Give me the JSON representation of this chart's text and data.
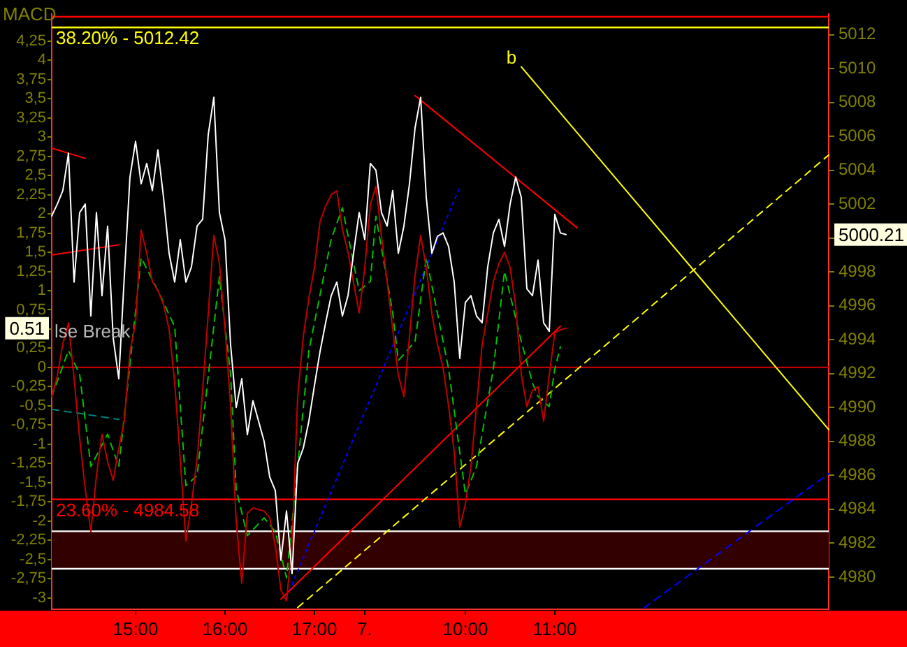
{
  "chart_data": {
    "type": "line",
    "ylabel": "MACD",
    "categories": [
      null,
      null,
      null,
      null,
      null,
      null,
      null,
      null,
      null,
      null,
      null,
      null,
      null,
      null,
      null,
      "15:00",
      null,
      null,
      null,
      null,
      null,
      null,
      null,
      null,
      null,
      null,
      null,
      null,
      null,
      null,
      null,
      "16:00",
      null,
      null,
      null,
      null,
      null,
      null,
      null,
      null,
      null,
      null,
      null,
      null,
      null,
      null,
      null,
      "17:00",
      null,
      null,
      null,
      null,
      null,
      null,
      null,
      null,
      "7.",
      null,
      null,
      null,
      null,
      null,
      null,
      null,
      null,
      null,
      null,
      null,
      null,
      null,
      null,
      null,
      null,
      null,
      "10:00",
      null,
      null,
      null,
      null,
      null,
      null,
      null,
      null,
      null,
      null,
      null,
      null,
      null,
      null,
      null,
      "11:00",
      null,
      null,
      null,
      null,
      null,
      null,
      null,
      null,
      null,
      null,
      null,
      null,
      null,
      null,
      null,
      null,
      null,
      null,
      null,
      null,
      null,
      null,
      null,
      null,
      null,
      null,
      null,
      null,
      null,
      null,
      null,
      null,
      null,
      null,
      null,
      null,
      null,
      null,
      null,
      null,
      null,
      null,
      null,
      null,
      null,
      null,
      null,
      null,
      null
    ],
    "ylim": [
      -3.15,
      4.6
    ],
    "y2lim": [
      4978.1,
      5013.2
    ],
    "yticks": [
      -3,
      {
        "value": -2.75,
        "label": "-2,75"
      },
      {
        "value": -2.5,
        "label": "-2,5"
      },
      {
        "value": -2.25,
        "label": "-2,25"
      },
      -2,
      {
        "value": -1.75,
        "label": "-1,75"
      },
      {
        "value": -1.5,
        "label": "-1,5"
      },
      {
        "value": -1.25,
        "label": "-1,25"
      },
      -1,
      {
        "value": -0.75,
        "label": "-0,75"
      },
      {
        "value": -0.5,
        "label": "-0,5"
      },
      {
        "value": -0.25,
        "label": "-0,25"
      },
      0,
      {
        "value": 0.25,
        "label": "0,25"
      },
      {
        "value": 0.5,
        "label": null
      },
      {
        "value": 0.75,
        "label": "0,75"
      },
      1,
      {
        "value": 1.25,
        "label": "1,25"
      },
      {
        "value": 1.5,
        "label": "1,5"
      },
      {
        "value": 1.75,
        "label": "1,75"
      },
      2,
      {
        "value": 2.25,
        "label": "2,25"
      },
      {
        "value": 2.5,
        "label": "2,5"
      },
      {
        "value": 2.75,
        "label": "2,75"
      },
      3,
      {
        "value": 3.25,
        "label": "3,25"
      },
      {
        "value": 3.5,
        "label": "3,5"
      },
      {
        "value": 3.75,
        "label": "3,75"
      },
      4,
      {
        "value": 4.25,
        "label": "4,25"
      }
    ],
    "y2ticks": [
      4980,
      4982,
      4984,
      4986,
      4988,
      4990,
      4992,
      4994,
      4996,
      4998,
      {
        "value": 5000,
        "label": null
      },
      5002,
      5004,
      5006,
      5008,
      5010,
      5012
    ],
    "series": [
      {
        "axis": "y2",
        "color": "#ffffff",
        "values": [
          5001.3,
          5002.0,
          5002.8,
          5005.0,
          4997.4,
          5001.5,
          5002.0,
          4995.4,
          5001.5,
          4996.6,
          5000.7,
          4994.1,
          4991.7,
          4997.8,
          5003.6,
          5005.7,
          5003.2,
          5004.4,
          5002.8,
          5005.2,
          5002.4,
          4999.1,
          4997.4,
          4999.9,
          4997.4,
          4998.3,
          5000.7,
          5001.1,
          5006.1,
          5008.3,
          5001.5,
          4999.9,
          4993.7,
          4990.0,
          4991.7,
          4988.4,
          4990.4,
          4989.2,
          4988.0,
          4985.9,
          4985.1,
          4981.0,
          4983.9,
          4980.2,
          4986.7,
          4987.6,
          4989.2,
          4991.3,
          4993.3,
          4995.0,
          4996.6,
          4997.4,
          4995.4,
          4996.6,
          4999.1,
          5001.5,
          4999.9,
          5004.4,
          5004.0,
          5001.5,
          5000.7,
          5002.8,
          4999.1,
          5000.7,
          5003.2,
          5006.5,
          5008.3,
          5002.4,
          4999.1,
          5000.1,
          5000.3,
          4999.5,
          4997.4,
          4992.9,
          4996.2,
          4996.6,
          4995.4,
          4995.0,
          4998.3,
          5000.3,
          5001.1,
          4999.5,
          5002.0,
          5003.6,
          5002.4,
          4997.0,
          4996.6,
          4998.7,
          4995.0,
          4994.5,
          5001.4,
          5000.3,
          5000.2,
          null,
          null,
          null,
          null,
          null,
          null,
          null,
          null,
          null,
          null,
          null,
          null,
          null,
          null,
          null,
          null,
          null,
          null,
          null,
          null,
          null,
          null,
          null,
          null,
          null,
          null,
          null,
          null,
          null,
          null,
          null,
          null,
          null,
          null,
          null,
          null,
          null,
          null,
          null,
          null,
          null,
          null,
          null,
          null,
          null,
          null,
          null
        ]
      },
      {
        "color": "#c00000",
        "values": [
          -0.38,
          -0.11,
          0.31,
          0.58,
          -0.14,
          -0.92,
          -1.59,
          -2.14,
          -1.41,
          -0.87,
          -1.23,
          -1.47,
          -1.05,
          -0.69,
          0.2,
          0.58,
          1.79,
          1.49,
          1.12,
          1.0,
          0.82,
          0.5,
          -0.2,
          -1.2,
          -2.26,
          -1.78,
          -1.2,
          -0.3,
          0.7,
          1.72,
          1.36,
          0.5,
          -0.5,
          -2.0,
          -2.81,
          -1.9,
          -1.83,
          -1.85,
          -1.87,
          -1.96,
          -2.32,
          -2.9,
          -3.04,
          -2.3,
          -0.38,
          0.4,
          0.9,
          1.3,
          1.9,
          2.1,
          2.25,
          2.3,
          1.8,
          1.5,
          1.1,
          0.71,
          1.3,
          2.12,
          2.36,
          1.7,
          1.12,
          0.5,
          -0.1,
          -0.38,
          0.4,
          1.2,
          1.72,
          1.3,
          0.7,
          0.3,
          0.0,
          -0.5,
          -1.1,
          -2.08,
          -1.78,
          -1.29,
          -0.5,
          0.3,
          0.7,
          1.12,
          1.35,
          1.5,
          1.3,
          0.8,
          -0.09,
          -0.51,
          -0.3,
          -0.25,
          -0.7,
          -0.1,
          0.45,
          0.49,
          0.51,
          null,
          null,
          null,
          null,
          null,
          null,
          null,
          null,
          null,
          null,
          null,
          null,
          null,
          null,
          null,
          null,
          null,
          null,
          null,
          null,
          null,
          null,
          null,
          null,
          null,
          null,
          null,
          null,
          null,
          null,
          null,
          null,
          null,
          null,
          null,
          null,
          null,
          null,
          null,
          null,
          null,
          null,
          null,
          null,
          null,
          null,
          null
        ]
      },
      {
        "color": "#00c000",
        "line_style": "dashed",
        "values": [
          -0.38,
          null,
          null,
          0.22,
          null,
          -0.09,
          null,
          -1.29,
          null,
          null,
          -0.87,
          null,
          -1.29,
          null,
          0.04,
          null,
          1.43,
          null,
          null,
          1.0,
          null,
          null,
          0.53,
          null,
          -1.54,
          null,
          -1.41,
          null,
          null,
          0.53,
          1.18,
          null,
          -0.09,
          -1.59,
          null,
          -2.19,
          null,
          null,
          -1.96,
          null,
          -2.14,
          null,
          -2.74,
          null,
          -1.29,
          null,
          0.22,
          null,
          null,
          null,
          1.67,
          null,
          2.08,
          null,
          null,
          1.0,
          null,
          1.12,
          1.97,
          null,
          null,
          0.71,
          0.09,
          null,
          null,
          0.34,
          null,
          1.43,
          null,
          null,
          null,
          -0.02,
          null,
          null,
          -1.65,
          null,
          -1.29,
          null,
          null,
          -0.02,
          null,
          1.25,
          null,
          null,
          0.34,
          null,
          -0.2,
          -0.38,
          null,
          -0.51,
          -0.02,
          0.27,
          null,
          null,
          null,
          null,
          null,
          null,
          null,
          null,
          null,
          null,
          null,
          null,
          null,
          null,
          null,
          null,
          null,
          null,
          null,
          null,
          null,
          null,
          null,
          null,
          null,
          null,
          null,
          null,
          null,
          null,
          null,
          null,
          null,
          null,
          null,
          null,
          null,
          null,
          null,
          null,
          null,
          null,
          null,
          null,
          null,
          null,
          null,
          null
        ]
      },
      {
        "axis": "y2",
        "color": "#ff0000",
        "values": [
          null,
          null,
          null,
          null,
          null,
          null,
          null,
          null,
          null,
          null,
          null,
          null,
          null,
          null,
          null,
          null,
          null,
          null,
          null,
          null,
          null,
          null,
          null,
          null,
          null,
          null,
          null,
          null,
          null,
          null,
          null,
          null,
          null,
          null,
          null,
          null,
          null,
          null,
          null,
          null,
          null,
          null,
          null,
          null,
          null,
          null,
          null,
          null,
          null,
          null,
          null,
          null,
          null,
          null,
          null,
          null,
          null,
          null,
          null,
          null,
          null,
          null,
          null,
          null,
          null,
          5008.4,
          null,
          null,
          null,
          null,
          null,
          null,
          null,
          null,
          null,
          null,
          null,
          null,
          null,
          null,
          null,
          null,
          null,
          null,
          null,
          null,
          null,
          null,
          null,
          null,
          null,
          null,
          null,
          null,
          5000.6,
          null,
          null,
          null,
          null,
          null,
          null,
          null,
          null,
          null,
          null,
          null,
          null,
          null,
          null,
          null,
          null,
          null,
          null,
          null,
          null,
          null,
          null,
          null,
          null,
          null,
          null,
          null,
          null,
          null,
          null,
          null,
          null,
          null,
          null,
          null,
          null,
          null,
          null,
          null,
          null,
          null,
          null,
          null,
          null,
          null
        ]
      },
      {
        "axis": "y2",
        "color": "#ff0000",
        "values": [
          null,
          null,
          null,
          null,
          null,
          null,
          null,
          null,
          null,
          null,
          null,
          null,
          null,
          null,
          null,
          null,
          null,
          null,
          null,
          null,
          null,
          null,
          null,
          null,
          null,
          null,
          null,
          null,
          null,
          null,
          null,
          null,
          null,
          null,
          null,
          null,
          null,
          null,
          null,
          null,
          null,
          4978.7,
          null,
          null,
          null,
          null,
          null,
          null,
          null,
          null,
          null,
          null,
          null,
          null,
          null,
          null,
          null,
          null,
          null,
          null,
          null,
          null,
          null,
          null,
          null,
          null,
          null,
          null,
          null,
          null,
          null,
          null,
          null,
          null,
          null,
          null,
          null,
          null,
          null,
          null,
          null,
          null,
          null,
          null,
          null,
          null,
          null,
          null,
          null,
          null,
          null,
          4994.8,
          null,
          null,
          null,
          null,
          null,
          null,
          null,
          null,
          null,
          null,
          null,
          null,
          null,
          null,
          null,
          null,
          null,
          null,
          null,
          null,
          null,
          null,
          null,
          null,
          null,
          null,
          null,
          null,
          null,
          null,
          null,
          null,
          null,
          null,
          null,
          null,
          null,
          null,
          null,
          null,
          null,
          null,
          null,
          null,
          null,
          null,
          null,
          null
        ]
      },
      {
        "axis": "y2",
        "color": "#0000ff",
        "line_style": "dotted",
        "values": [
          null,
          null,
          null,
          null,
          null,
          null,
          null,
          null,
          null,
          null,
          null,
          null,
          null,
          null,
          null,
          null,
          null,
          null,
          null,
          null,
          null,
          null,
          null,
          null,
          null,
          null,
          null,
          null,
          null,
          null,
          null,
          null,
          null,
          null,
          null,
          null,
          null,
          null,
          null,
          null,
          null,
          null,
          4978.8,
          null,
          null,
          null,
          null,
          null,
          null,
          null,
          null,
          null,
          null,
          null,
          null,
          null,
          null,
          null,
          null,
          null,
          null,
          null,
          null,
          null,
          null,
          null,
          null,
          null,
          null,
          null,
          null,
          null,
          null,
          5003.0,
          null,
          null,
          null,
          null,
          null,
          null,
          null,
          null,
          null,
          null,
          null,
          null,
          null,
          null,
          null,
          null,
          null,
          null,
          null,
          null,
          null,
          null,
          null,
          null,
          null,
          null,
          null,
          null,
          null,
          null,
          null,
          null,
          null,
          null,
          null,
          null,
          null,
          null,
          null,
          null,
          null,
          null,
          null,
          null,
          null,
          null,
          null,
          null,
          null,
          null,
          null,
          null,
          null,
          null,
          null,
          null,
          null,
          null,
          null,
          null,
          null,
          null,
          null,
          null,
          null,
          null
        ]
      },
      {
        "axis": "y2",
        "color": "#0000ff",
        "line_style": "dashed",
        "values": [
          null,
          null,
          null,
          null,
          null,
          null,
          null,
          null,
          null,
          null,
          null,
          null,
          null,
          null,
          null,
          null,
          null,
          null,
          null,
          null,
          null,
          null,
          null,
          null,
          null,
          null,
          null,
          null,
          null,
          null,
          null,
          null,
          null,
          null,
          null,
          null,
          null,
          null,
          null,
          null,
          null,
          null,
          null,
          null,
          null,
          null,
          null,
          null,
          null,
          null,
          null,
          null,
          null,
          null,
          null,
          null,
          null,
          null,
          null,
          null,
          null,
          null,
          null,
          null,
          null,
          null,
          null,
          null,
          null,
          null,
          null,
          null,
          null,
          null,
          null,
          null,
          null,
          null,
          null,
          null,
          null,
          null,
          null,
          null,
          null,
          null,
          null,
          null,
          null,
          null,
          null,
          null,
          null,
          null,
          null,
          null,
          null,
          null,
          null,
          null,
          null,
          null,
          null,
          null,
          null,
          null,
          4978.2,
          null,
          null,
          null,
          null,
          null,
          null,
          null,
          null,
          null,
          null,
          null,
          null,
          null,
          null,
          null,
          null,
          null,
          null,
          null,
          null,
          null,
          null,
          null,
          null,
          null,
          null,
          null,
          null,
          null,
          null,
          null,
          null,
          4986.1
        ]
      },
      {
        "axis": "y2",
        "color": "#ffff00",
        "values": [
          null,
          null,
          null,
          null,
          null,
          null,
          null,
          null,
          null,
          null,
          null,
          null,
          null,
          null,
          null,
          null,
          null,
          null,
          null,
          null,
          null,
          null,
          null,
          null,
          null,
          null,
          null,
          null,
          null,
          null,
          null,
          null,
          null,
          null,
          null,
          null,
          null,
          null,
          null,
          null,
          null,
          null,
          null,
          null,
          null,
          null,
          null,
          null,
          null,
          null,
          null,
          null,
          null,
          null,
          null,
          null,
          null,
          null,
          null,
          null,
          null,
          null,
          null,
          null,
          null,
          null,
          null,
          null,
          null,
          null,
          null,
          null,
          null,
          null,
          null,
          null,
          null,
          null,
          null,
          null,
          null,
          null,
          null,
          null,
          5010.1,
          null,
          null,
          null,
          null,
          null,
          null,
          null,
          null,
          null,
          null,
          null,
          null,
          null,
          null,
          null,
          null,
          null,
          null,
          null,
          null,
          null,
          null,
          null,
          null,
          null,
          null,
          null,
          null,
          null,
          null,
          null,
          null,
          null,
          null,
          null,
          null,
          null,
          null,
          null,
          null,
          null,
          null,
          null,
          null,
          null,
          null,
          null,
          null,
          null,
          null,
          null,
          null,
          null,
          null,
          4988.7
        ]
      },
      {
        "axis": "y2",
        "color": "#ffff00",
        "line_style": "dashed",
        "values": [
          null,
          null,
          null,
          null,
          null,
          null,
          null,
          null,
          null,
          null,
          null,
          null,
          null,
          null,
          null,
          null,
          null,
          null,
          null,
          null,
          null,
          null,
          null,
          null,
          null,
          null,
          null,
          null,
          null,
          null,
          null,
          null,
          null,
          null,
          null,
          null,
          null,
          null,
          null,
          null,
          null,
          null,
          null,
          null,
          4978.2,
          null,
          null,
          null,
          null,
          null,
          null,
          null,
          null,
          null,
          null,
          null,
          null,
          null,
          null,
          null,
          null,
          null,
          null,
          null,
          null,
          null,
          null,
          null,
          null,
          null,
          null,
          null,
          null,
          null,
          null,
          null,
          null,
          null,
          null,
          null,
          null,
          null,
          null,
          null,
          null,
          null,
          null,
          null,
          null,
          null,
          null,
          null,
          null,
          null,
          null,
          null,
          null,
          null,
          null,
          null,
          null,
          null,
          null,
          null,
          null,
          null,
          null,
          null,
          null,
          null,
          null,
          null,
          null,
          null,
          null,
          null,
          null,
          null,
          null,
          null,
          null,
          null,
          null,
          null,
          null,
          null,
          null,
          null,
          null,
          null,
          null,
          null,
          null,
          null,
          null,
          null,
          null,
          null,
          null,
          5004.9
        ]
      },
      {
        "axis": "y2",
        "color": "#ff0000",
        "values": [
          5005.3,
          null,
          null,
          null,
          null,
          null,
          5004.7,
          null,
          null,
          null,
          null,
          null,
          null,
          null,
          null,
          null,
          null,
          null,
          null,
          null,
          null,
          null,
          null,
          null,
          null,
          null,
          null,
          null,
          null,
          null,
          null,
          null,
          null,
          null,
          null,
          null,
          null,
          null,
          null,
          null,
          null,
          null,
          null,
          null,
          null,
          null,
          null,
          null,
          null,
          null,
          null,
          null,
          null,
          null,
          null,
          null,
          null,
          null,
          null,
          null,
          null,
          null,
          null,
          null,
          null,
          null,
          null,
          null,
          null,
          null,
          null,
          null,
          null,
          null,
          null,
          null,
          null,
          null,
          null,
          null,
          null,
          null,
          null,
          null,
          null,
          null,
          null,
          null,
          null,
          null,
          null,
          null,
          null,
          null,
          null,
          null,
          null,
          null,
          null,
          null,
          null,
          null,
          null,
          null,
          null,
          null,
          null,
          null,
          null,
          null,
          null,
          null,
          null,
          null,
          null,
          null,
          null,
          null,
          null,
          null,
          null,
          null,
          null,
          null,
          null,
          null,
          null,
          null,
          null,
          null,
          null,
          null,
          null,
          null,
          null,
          null,
          null,
          null,
          null,
          null
        ]
      },
      {
        "axis": "y2",
        "color": "#ff0000",
        "values": [
          4999.0,
          null,
          null,
          null,
          null,
          null,
          null,
          null,
          null,
          null,
          null,
          null,
          4999.6,
          null,
          null,
          null,
          null,
          null,
          null,
          null,
          null,
          null,
          null,
          null,
          null,
          null,
          null,
          null,
          null,
          null,
          null,
          null,
          null,
          null,
          null,
          null,
          null,
          null,
          null,
          null,
          null,
          null,
          null,
          null,
          null,
          null,
          null,
          null,
          null,
          null,
          null,
          null,
          null,
          null,
          null,
          null,
          null,
          null,
          null,
          null,
          null,
          null,
          null,
          null,
          null,
          null,
          null,
          null,
          null,
          null,
          null,
          null,
          null,
          null,
          null,
          null,
          null,
          null,
          null,
          null,
          null,
          null,
          null,
          null,
          null,
          null,
          null,
          null,
          null,
          null,
          null,
          null,
          null,
          null,
          null,
          null,
          null,
          null,
          null,
          null,
          null,
          null,
          null,
          null,
          null,
          null,
          null,
          null,
          null,
          null,
          null,
          null,
          null,
          null,
          null,
          null,
          null,
          null,
          null,
          null,
          null,
          null,
          null,
          null,
          null,
          null,
          null,
          null,
          null,
          null,
          null,
          null,
          null,
          null,
          null,
          null,
          null,
          null,
          null,
          null
        ]
      },
      {
        "axis": "y2",
        "color": "#008080",
        "line_style": "dashed",
        "values": [
          4989.9,
          null,
          null,
          null,
          null,
          null,
          null,
          null,
          null,
          null,
          null,
          null,
          4989.3,
          null,
          null,
          null,
          null,
          null,
          null,
          null,
          null,
          null,
          null,
          null,
          null,
          null,
          null,
          null,
          null,
          null,
          null,
          null,
          null,
          null,
          null,
          null,
          null,
          null,
          null,
          null,
          null,
          null,
          null,
          null,
          null,
          null,
          null,
          null,
          null,
          null,
          null,
          null,
          null,
          null,
          null,
          null,
          null,
          null,
          null,
          null,
          null,
          null,
          null,
          null,
          null,
          null,
          null,
          null,
          null,
          null,
          null,
          null,
          null,
          null,
          null,
          null,
          null,
          null,
          null,
          null,
          null,
          null,
          null,
          null,
          null,
          null,
          null,
          null,
          null,
          null,
          null,
          null,
          null,
          null,
          null,
          null,
          null,
          null,
          null,
          null,
          null,
          null,
          null,
          null,
          null,
          null,
          null,
          null,
          null,
          null,
          null,
          null,
          null,
          null,
          null,
          null,
          null,
          null,
          null,
          null,
          null,
          null,
          null,
          null,
          null,
          null,
          null,
          null,
          null,
          null,
          null,
          null,
          null,
          null,
          null,
          null,
          null,
          null,
          null,
          null
        ]
      }
    ],
    "ref_lines": [
      {
        "axis": "y2",
        "value": 5013.05,
        "color": "#ff0000"
      },
      {
        "axis": "y2",
        "value": 5012.42,
        "color": "#ffff00"
      },
      {
        "axis": "y",
        "value": 0,
        "color": "#c00000"
      },
      {
        "axis": "y2",
        "value": 4984.58,
        "color": "#ff0000"
      },
      {
        "axis": "y2",
        "value": 4982.7,
        "color": "#ffffff"
      },
      {
        "axis": "y2",
        "value": 4980.49,
        "color": "#ffffff"
      }
    ],
    "bands": [
      {
        "axis": "y2",
        "from": 4980.49,
        "to": 4982.7,
        "color": "#330000"
      }
    ],
    "annotations": [
      "38.20% - 5012.42",
      "23.60% - 4984.58",
      "0.51",
      "5000.21",
      "lse Break",
      "b"
    ]
  }
}
